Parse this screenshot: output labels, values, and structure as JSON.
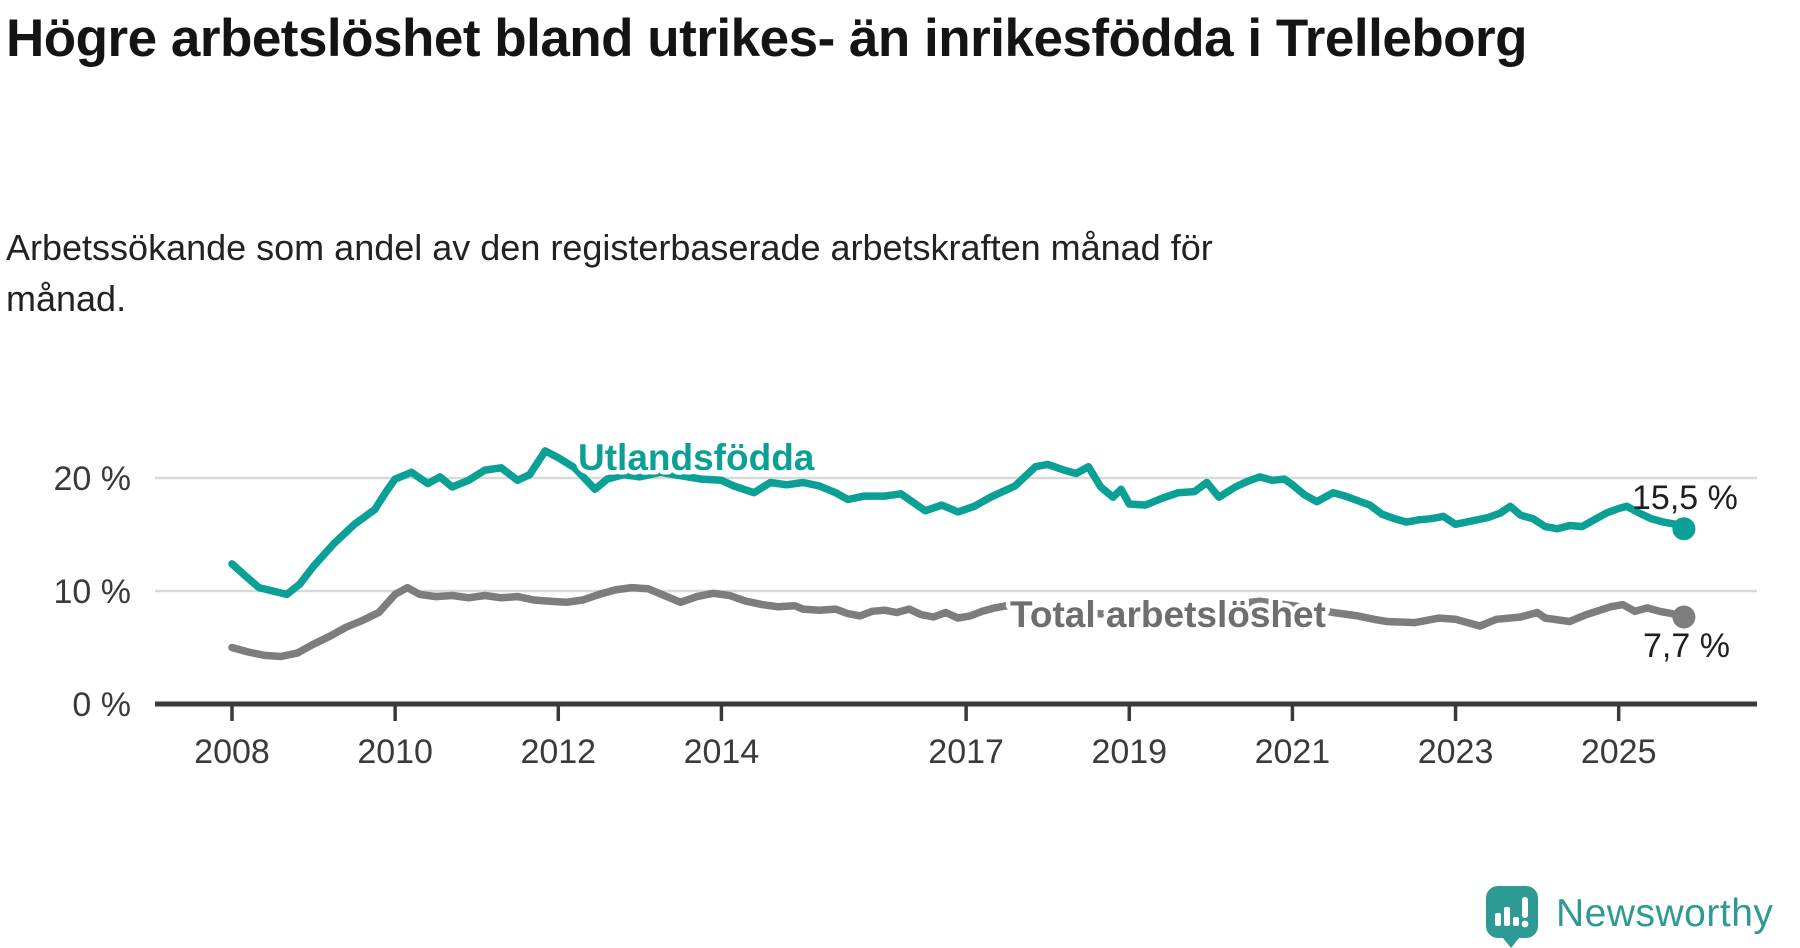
{
  "header": {
    "title": "Högre arbetslöshet bland utrikes- än inrikesfödda i Trelleborg",
    "subtitle": "Arbetssökande som andel av den registerbaserade arbetskraften månad för månad."
  },
  "chart_data": {
    "type": "line",
    "unit": "%",
    "grid": "horizontal",
    "x_ticks": [
      2008,
      2010,
      2012,
      2014,
      2017,
      2019,
      2021,
      2023,
      2025
    ],
    "x_range_years": [
      2007.1,
      2026.7
    ],
    "y_ticks": [
      {
        "value": 0,
        "label": "0 %"
      },
      {
        "value": 10,
        "label": "10 %"
      },
      {
        "value": 20,
        "label": "20 %"
      }
    ],
    "y_range": [
      0,
      29.5
    ],
    "colors": {
      "gridline": "#d9d9d9",
      "axis": "#3a3a3a",
      "tick_text": "#3a3a3a"
    },
    "series": [
      {
        "name": "Total arbetslöshet",
        "color": "#7d7d7d",
        "label_color": "#6e6e6e",
        "end_value": 7.7,
        "end_value_label": "7,7 %",
        "points": [
          [
            2008.0,
            5.0
          ],
          [
            2008.2,
            4.6
          ],
          [
            2008.4,
            4.3
          ],
          [
            2008.6,
            4.2
          ],
          [
            2008.8,
            4.5
          ],
          [
            2009.0,
            5.3
          ],
          [
            2009.2,
            6.0
          ],
          [
            2009.4,
            6.8
          ],
          [
            2009.6,
            7.4
          ],
          [
            2009.8,
            8.1
          ],
          [
            2010.0,
            9.7
          ],
          [
            2010.15,
            10.3
          ],
          [
            2010.3,
            9.7
          ],
          [
            2010.5,
            9.5
          ],
          [
            2010.7,
            9.6
          ],
          [
            2010.9,
            9.4
          ],
          [
            2011.1,
            9.6
          ],
          [
            2011.3,
            9.4
          ],
          [
            2011.5,
            9.5
          ],
          [
            2011.7,
            9.2
          ],
          [
            2011.9,
            9.1
          ],
          [
            2012.1,
            9.0
          ],
          [
            2012.3,
            9.2
          ],
          [
            2012.5,
            9.7
          ],
          [
            2012.7,
            10.1
          ],
          [
            2012.9,
            10.3
          ],
          [
            2013.1,
            10.2
          ],
          [
            2013.3,
            9.6
          ],
          [
            2013.5,
            9.0
          ],
          [
            2013.7,
            9.5
          ],
          [
            2013.9,
            9.8
          ],
          [
            2014.1,
            9.6
          ],
          [
            2014.3,
            9.1
          ],
          [
            2014.5,
            8.8
          ],
          [
            2014.7,
            8.6
          ],
          [
            2014.9,
            8.7
          ],
          [
            2015.0,
            8.4
          ],
          [
            2015.2,
            8.3
          ],
          [
            2015.4,
            8.4
          ],
          [
            2015.55,
            8.0
          ],
          [
            2015.7,
            7.8
          ],
          [
            2015.85,
            8.2
          ],
          [
            2016.0,
            8.3
          ],
          [
            2016.15,
            8.1
          ],
          [
            2016.3,
            8.4
          ],
          [
            2016.45,
            7.9
          ],
          [
            2016.6,
            7.7
          ],
          [
            2016.75,
            8.1
          ],
          [
            2016.9,
            7.6
          ],
          [
            2017.05,
            7.8
          ],
          [
            2017.2,
            8.2
          ],
          [
            2017.35,
            8.5
          ],
          [
            2017.5,
            8.7
          ],
          [
            2017.65,
            8.6
          ],
          [
            2017.8,
            8.4
          ],
          [
            2018.0,
            8.3
          ],
          [
            2018.3,
            8.1
          ],
          [
            2018.6,
            8.0
          ],
          [
            2018.9,
            7.9
          ],
          [
            2019.2,
            7.8
          ],
          [
            2019.5,
            7.9
          ],
          [
            2019.8,
            8.0
          ],
          [
            2020.1,
            8.4
          ],
          [
            2020.4,
            8.9
          ],
          [
            2020.6,
            9.1
          ],
          [
            2020.9,
            8.8
          ],
          [
            2021.2,
            8.5
          ],
          [
            2021.5,
            8.1
          ],
          [
            2021.8,
            7.8
          ],
          [
            2022.0,
            7.5
          ],
          [
            2022.16,
            7.3
          ],
          [
            2022.5,
            7.2
          ],
          [
            2022.8,
            7.6
          ],
          [
            2023.0,
            7.5
          ],
          [
            2023.3,
            6.9
          ],
          [
            2023.5,
            7.5
          ],
          [
            2023.8,
            7.7
          ],
          [
            2024.0,
            8.1
          ],
          [
            2024.1,
            7.6
          ],
          [
            2024.4,
            7.3
          ],
          [
            2024.6,
            7.9
          ],
          [
            2024.9,
            8.6
          ],
          [
            2025.05,
            8.8
          ],
          [
            2025.2,
            8.2
          ],
          [
            2025.35,
            8.5
          ],
          [
            2025.5,
            8.2
          ],
          [
            2025.65,
            8.0
          ],
          [
            2025.8,
            7.7
          ]
        ]
      },
      {
        "name": "Utlandsfödda",
        "color": "#0aa096",
        "label_color": "#0aa096",
        "end_value": 15.5,
        "end_value_label": "15,5 %",
        "points": [
          [
            2008.0,
            12.4
          ],
          [
            2008.17,
            11.3
          ],
          [
            2008.33,
            10.3
          ],
          [
            2008.5,
            10.0
          ],
          [
            2008.67,
            9.7
          ],
          [
            2008.83,
            10.6
          ],
          [
            2009.0,
            12.2
          ],
          [
            2009.25,
            14.2
          ],
          [
            2009.5,
            15.9
          ],
          [
            2009.75,
            17.2
          ],
          [
            2009.9,
            18.9
          ],
          [
            2010.0,
            19.9
          ],
          [
            2010.2,
            20.5
          ],
          [
            2010.4,
            19.5
          ],
          [
            2010.55,
            20.1
          ],
          [
            2010.7,
            19.2
          ],
          [
            2010.9,
            19.8
          ],
          [
            2011.1,
            20.7
          ],
          [
            2011.3,
            20.9
          ],
          [
            2011.5,
            19.8
          ],
          [
            2011.65,
            20.3
          ],
          [
            2011.84,
            22.4
          ],
          [
            2012.0,
            21.8
          ],
          [
            2012.2,
            20.9
          ],
          [
            2012.45,
            19.0
          ],
          [
            2012.6,
            19.9
          ],
          [
            2012.8,
            20.3
          ],
          [
            2013.0,
            20.1
          ],
          [
            2013.25,
            20.5
          ],
          [
            2013.5,
            20.2
          ],
          [
            2013.75,
            19.9
          ],
          [
            2014.0,
            19.8
          ],
          [
            2014.15,
            19.3
          ],
          [
            2014.4,
            18.7
          ],
          [
            2014.6,
            19.6
          ],
          [
            2014.8,
            19.4
          ],
          [
            2015.0,
            19.6
          ],
          [
            2015.2,
            19.3
          ],
          [
            2015.4,
            18.7
          ],
          [
            2015.55,
            18.1
          ],
          [
            2015.75,
            18.4
          ],
          [
            2016.0,
            18.4
          ],
          [
            2016.2,
            18.6
          ],
          [
            2016.5,
            17.1
          ],
          [
            2016.7,
            17.6
          ],
          [
            2016.9,
            17.0
          ],
          [
            2017.1,
            17.5
          ],
          [
            2017.3,
            18.3
          ],
          [
            2017.6,
            19.3
          ],
          [
            2017.85,
            21.0
          ],
          [
            2018.0,
            21.2
          ],
          [
            2018.2,
            20.7
          ],
          [
            2018.35,
            20.4
          ],
          [
            2018.5,
            21.0
          ],
          [
            2018.65,
            19.2
          ],
          [
            2018.8,
            18.3
          ],
          [
            2018.9,
            19.0
          ],
          [
            2019.0,
            17.7
          ],
          [
            2019.2,
            17.6
          ],
          [
            2019.4,
            18.2
          ],
          [
            2019.6,
            18.7
          ],
          [
            2019.8,
            18.8
          ],
          [
            2019.95,
            19.6
          ],
          [
            2020.1,
            18.3
          ],
          [
            2020.3,
            19.2
          ],
          [
            2020.45,
            19.7
          ],
          [
            2020.6,
            20.1
          ],
          [
            2020.75,
            19.8
          ],
          [
            2020.9,
            19.9
          ],
          [
            2021.0,
            19.4
          ],
          [
            2021.15,
            18.5
          ],
          [
            2021.3,
            17.9
          ],
          [
            2021.5,
            18.7
          ],
          [
            2021.65,
            18.4
          ],
          [
            2021.8,
            18.0
          ],
          [
            2021.95,
            17.6
          ],
          [
            2022.1,
            16.8
          ],
          [
            2022.25,
            16.4
          ],
          [
            2022.4,
            16.1
          ],
          [
            2022.55,
            16.3
          ],
          [
            2022.7,
            16.4
          ],
          [
            2022.85,
            16.6
          ],
          [
            2023.0,
            15.9
          ],
          [
            2023.2,
            16.2
          ],
          [
            2023.4,
            16.5
          ],
          [
            2023.55,
            16.9
          ],
          [
            2023.67,
            17.5
          ],
          [
            2023.8,
            16.7
          ],
          [
            2023.95,
            16.4
          ],
          [
            2024.1,
            15.7
          ],
          [
            2024.25,
            15.5
          ],
          [
            2024.4,
            15.8
          ],
          [
            2024.55,
            15.7
          ],
          [
            2024.7,
            16.3
          ],
          [
            2024.85,
            16.9
          ],
          [
            2025.0,
            17.3
          ],
          [
            2025.1,
            17.5
          ],
          [
            2025.25,
            16.9
          ],
          [
            2025.4,
            16.4
          ],
          [
            2025.55,
            16.1
          ],
          [
            2025.7,
            15.9
          ],
          [
            2025.8,
            15.5
          ]
        ]
      }
    ]
  },
  "footer": {
    "brand": "Newsworthy",
    "brand_color": "#2d9a94"
  }
}
